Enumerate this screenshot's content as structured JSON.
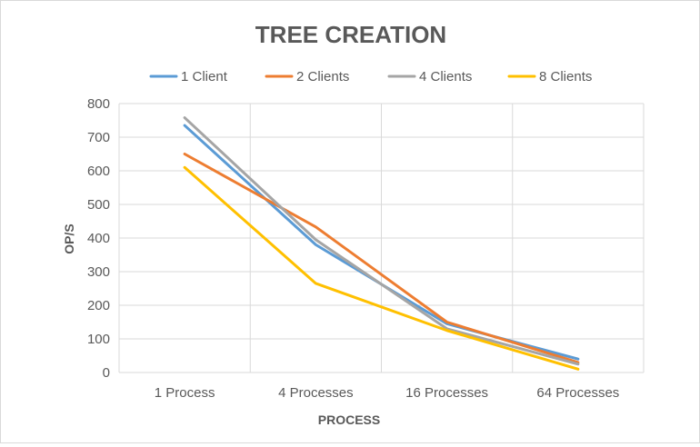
{
  "chart_data": {
    "type": "line",
    "title": "TREE CREATION",
    "xlabel": "PROCESS",
    "ylabel": "OP/S",
    "categories": [
      "1 Process",
      "4 Processes",
      "16 Processes",
      "64 Processes"
    ],
    "ylim": [
      0,
      800
    ],
    "yticks": [
      0,
      100,
      200,
      300,
      400,
      500,
      600,
      700,
      800
    ],
    "grid": true,
    "legend_position": "top",
    "series": [
      {
        "name": "1 Client",
        "color": "#5b9bd5",
        "values": [
          735,
          380,
          145,
          40
        ]
      },
      {
        "name": "2 Clients",
        "color": "#ed7d31",
        "values": [
          650,
          433,
          150,
          30
        ]
      },
      {
        "name": "4 Clients",
        "color": "#a5a5a5",
        "values": [
          758,
          395,
          130,
          25
        ]
      },
      {
        "name": "8 Clients",
        "color": "#ffc000",
        "values": [
          610,
          265,
          125,
          10
        ]
      }
    ]
  }
}
